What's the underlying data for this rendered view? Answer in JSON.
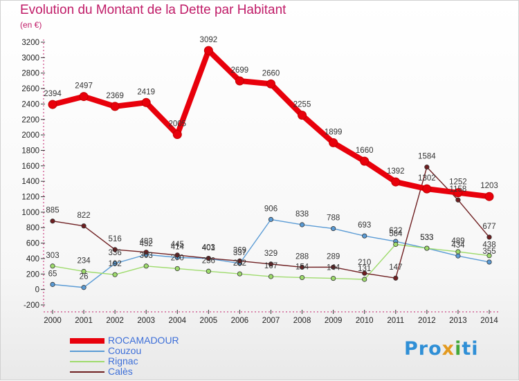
{
  "title": "Evolution du Montant de la Dette par Habitant",
  "subtitle": "(en €)",
  "logo": {
    "text": "Proxiti",
    "colors": [
      "#2f8fd6",
      "#e39a1f",
      "#43a83a"
    ]
  },
  "chart_data": {
    "type": "line",
    "x": [
      "2000",
      "2001",
      "2002",
      "2003",
      "2004",
      "2005",
      "2006",
      "2007",
      "2008",
      "2009",
      "2010",
      "2011",
      "2012",
      "2013",
      "2014"
    ],
    "ylim": [
      -200,
      3200
    ],
    "yticks": [
      -200,
      0,
      200,
      400,
      600,
      800,
      1000,
      1200,
      1400,
      1600,
      1800,
      2000,
      2200,
      2400,
      2600,
      2800,
      3000,
      3200
    ],
    "grid": false,
    "legend_position": "bottom-left",
    "series": [
      {
        "name": "ROCAMADOUR",
        "color": "#e8000b",
        "values": [
          2394,
          2497,
          2369,
          2419,
          2005,
          3092,
          2699,
          2660,
          2255,
          1899,
          1660,
          1392,
          1302,
          1252,
          1203
        ],
        "labels": [
          "2394",
          "2497",
          "2369",
          "2419",
          "2005",
          "3092",
          "2699",
          "2660",
          "2255",
          "1899",
          "1660",
          "1392",
          "1302",
          "1252",
          "1203"
        ]
      },
      {
        "name": "Couzou",
        "color": "#5a9bd5",
        "values": [
          65,
          26,
          336,
          452,
          414,
          401,
          337,
          906,
          838,
          788,
          693,
          622,
          533,
          434,
          355
        ],
        "labels": [
          "65",
          "26",
          "336",
          "452",
          "414",
          "401",
          "337",
          "906",
          "838",
          "788",
          "693",
          "622",
          "533",
          "434",
          "355"
        ]
      },
      {
        "name": "Rignac",
        "color": "#9edb6c",
        "values": [
          303,
          234,
          192,
          303,
          270,
          236,
          202,
          167,
          154,
          144,
          131,
          584,
          533,
          489,
          438
        ],
        "labels": [
          "303",
          "234",
          "192",
          "303",
          "270",
          "236",
          "202",
          "167",
          "154",
          "144",
          "131",
          "584",
          "533",
          "489",
          "438"
        ]
      },
      {
        "name": "Calès",
        "color": "#6e1e20",
        "values": [
          885,
          822,
          516,
          483,
          445,
          403,
          369,
          329,
          288,
          289,
          210,
          147,
          1584,
          1158,
          677
        ],
        "labels": [
          "885",
          "822",
          "516",
          "483",
          "445",
          "403",
          "369",
          "329",
          "288",
          "289",
          "210",
          "147",
          "1584",
          "1158",
          "677"
        ]
      }
    ]
  }
}
